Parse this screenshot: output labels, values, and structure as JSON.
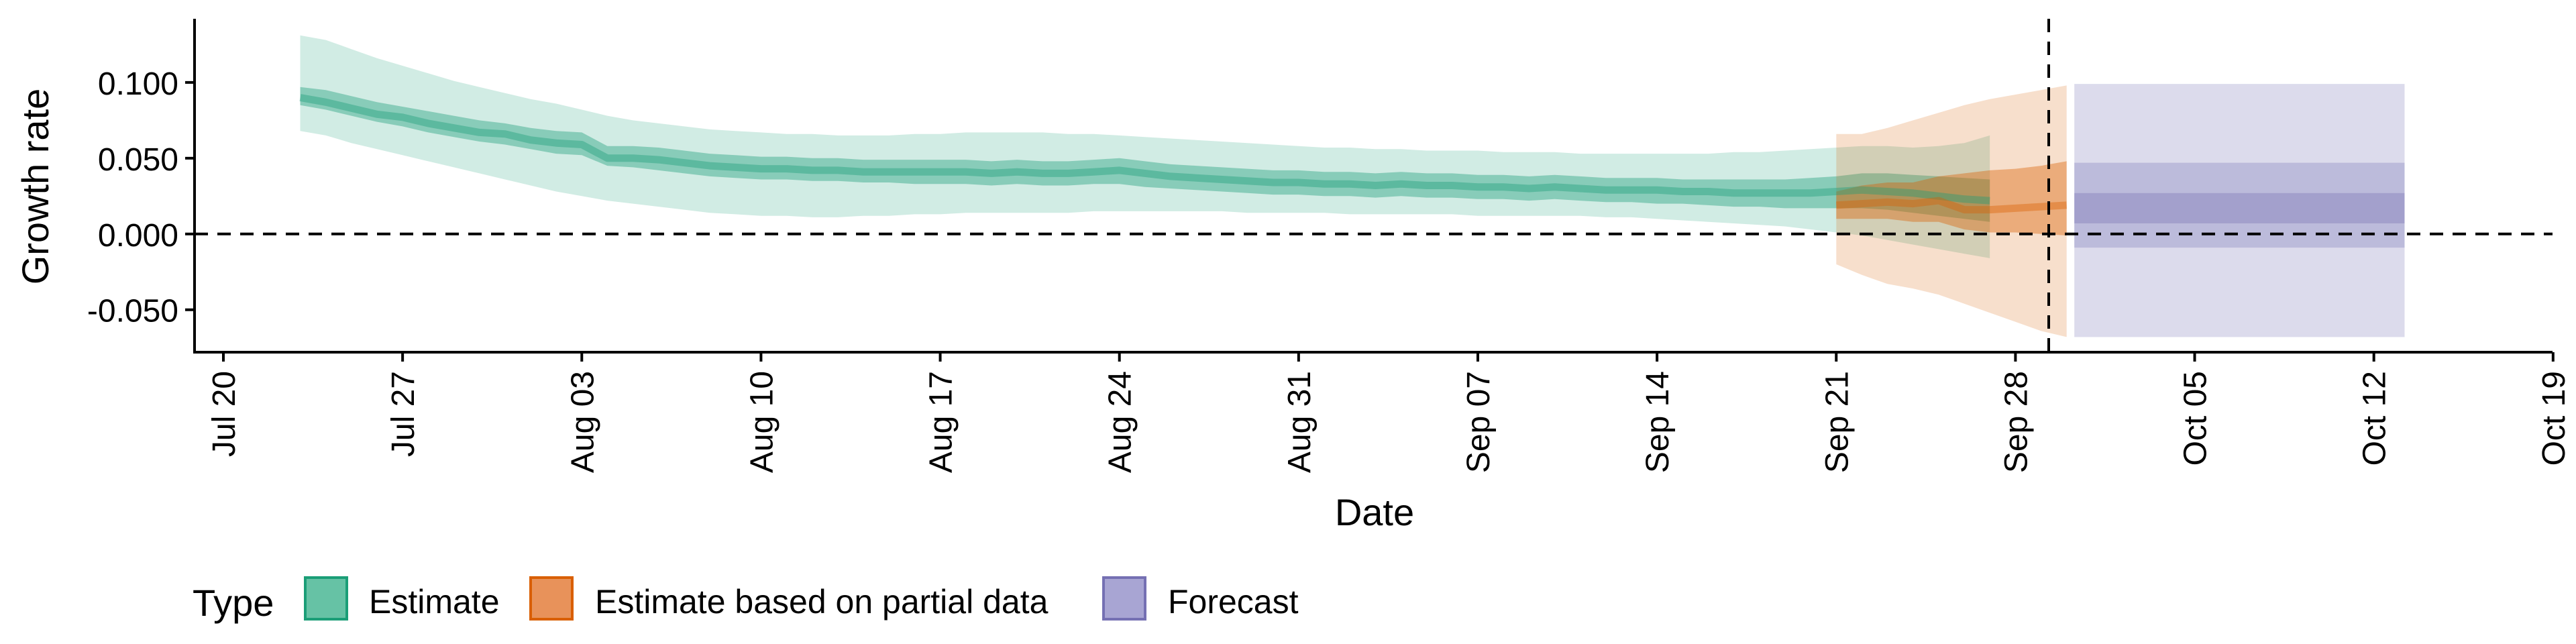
{
  "chart_data": {
    "type": "area",
    "title": "",
    "xlabel": "Date",
    "ylabel": "Growth rate",
    "ylim": [
      -0.078,
      0.142
    ],
    "xlim_days_from_jul20": [
      -1,
      91.3
    ],
    "y_ticks": [
      {
        "value": -0.05,
        "label": "-0.050"
      },
      {
        "value": 0.0,
        "label": "0.000"
      },
      {
        "value": 0.05,
        "label": "0.050"
      },
      {
        "value": 0.1,
        "label": "0.100"
      }
    ],
    "x_ticks": [
      {
        "day": 0,
        "label": "Jul 20"
      },
      {
        "day": 7,
        "label": "Jul 27"
      },
      {
        "day": 14,
        "label": "Aug 03"
      },
      {
        "day": 21,
        "label": "Aug 10"
      },
      {
        "day": 28,
        "label": "Aug 17"
      },
      {
        "day": 35,
        "label": "Aug 24"
      },
      {
        "day": 42,
        "label": "Aug 31"
      },
      {
        "day": 49,
        "label": "Sep 07"
      },
      {
        "day": 56,
        "label": "Sep 14"
      },
      {
        "day": 63,
        "label": "Sep 21"
      },
      {
        "day": 70,
        "label": "Sep 28"
      },
      {
        "day": 77,
        "label": "Oct 05"
      },
      {
        "day": 84,
        "label": "Oct 12"
      },
      {
        "day": 91,
        "label": "Oct 19"
      }
    ],
    "reference_lines": {
      "horizontal_y": 0.0,
      "vertical_day": 71.3
    },
    "legend": {
      "position": "bottom-left",
      "title": "Type",
      "entries": [
        {
          "label": "Estimate",
          "fill": "#66c2a5",
          "border": "#1b9e77"
        },
        {
          "label": "Estimate based on partial data",
          "fill": "#e8925a",
          "border": "#d95f02"
        },
        {
          "label": "Forecast",
          "fill": "#a8a5d3",
          "border": "#7570b3"
        }
      ]
    },
    "series": [
      {
        "name": "Estimate",
        "color": "#1b9e77",
        "x_start_day": 3,
        "x_step_days": 1,
        "median": [
          0.09,
          0.087,
          0.083,
          0.079,
          0.077,
          0.073,
          0.07,
          0.067,
          0.066,
          0.062,
          0.06,
          0.059,
          0.05,
          0.05,
          0.049,
          0.047,
          0.045,
          0.044,
          0.043,
          0.043,
          0.042,
          0.042,
          0.041,
          0.041,
          0.041,
          0.041,
          0.041,
          0.04,
          0.041,
          0.04,
          0.04,
          0.041,
          0.042,
          0.04,
          0.038,
          0.037,
          0.036,
          0.035,
          0.034,
          0.034,
          0.033,
          0.033,
          0.032,
          0.033,
          0.032,
          0.032,
          0.031,
          0.031,
          0.03,
          0.031,
          0.03,
          0.029,
          0.029,
          0.029,
          0.028,
          0.028,
          0.027,
          0.027,
          0.027,
          0.027,
          0.028,
          0.029,
          0.028,
          0.027,
          0.025,
          0.023,
          0.022
        ],
        "inner_low": [
          0.085,
          0.082,
          0.078,
          0.074,
          0.071,
          0.067,
          0.064,
          0.061,
          0.059,
          0.056,
          0.053,
          0.052,
          0.045,
          0.044,
          0.042,
          0.04,
          0.038,
          0.037,
          0.036,
          0.036,
          0.035,
          0.035,
          0.034,
          0.034,
          0.033,
          0.033,
          0.033,
          0.032,
          0.033,
          0.032,
          0.032,
          0.033,
          0.033,
          0.031,
          0.03,
          0.029,
          0.028,
          0.027,
          0.026,
          0.026,
          0.025,
          0.025,
          0.024,
          0.025,
          0.024,
          0.024,
          0.023,
          0.023,
          0.022,
          0.023,
          0.022,
          0.021,
          0.021,
          0.02,
          0.02,
          0.019,
          0.018,
          0.018,
          0.017,
          0.017,
          0.017,
          0.017,
          0.016,
          0.014,
          0.012,
          0.01,
          0.008
        ],
        "inner_high": [
          0.097,
          0.095,
          0.091,
          0.087,
          0.084,
          0.081,
          0.078,
          0.075,
          0.073,
          0.07,
          0.068,
          0.067,
          0.058,
          0.058,
          0.057,
          0.055,
          0.053,
          0.052,
          0.051,
          0.051,
          0.05,
          0.05,
          0.049,
          0.049,
          0.049,
          0.049,
          0.049,
          0.048,
          0.049,
          0.048,
          0.048,
          0.049,
          0.05,
          0.048,
          0.046,
          0.045,
          0.044,
          0.043,
          0.042,
          0.042,
          0.041,
          0.041,
          0.04,
          0.041,
          0.04,
          0.04,
          0.039,
          0.039,
          0.038,
          0.039,
          0.038,
          0.037,
          0.037,
          0.037,
          0.036,
          0.036,
          0.036,
          0.036,
          0.036,
          0.037,
          0.038,
          0.04,
          0.04,
          0.039,
          0.038,
          0.037,
          0.036
        ],
        "outer_low": [
          0.068,
          0.065,
          0.06,
          0.056,
          0.052,
          0.048,
          0.044,
          0.04,
          0.036,
          0.032,
          0.028,
          0.025,
          0.022,
          0.02,
          0.018,
          0.016,
          0.014,
          0.013,
          0.012,
          0.012,
          0.011,
          0.011,
          0.012,
          0.012,
          0.013,
          0.013,
          0.014,
          0.014,
          0.014,
          0.014,
          0.014,
          0.015,
          0.015,
          0.015,
          0.015,
          0.015,
          0.015,
          0.014,
          0.014,
          0.014,
          0.014,
          0.013,
          0.013,
          0.013,
          0.013,
          0.013,
          0.012,
          0.012,
          0.012,
          0.012,
          0.012,
          0.011,
          0.011,
          0.01,
          0.009,
          0.008,
          0.007,
          0.006,
          0.005,
          0.003,
          0.001,
          -0.001,
          -0.004,
          -0.007,
          -0.01,
          -0.013,
          -0.016
        ],
        "outer_high": [
          0.131,
          0.128,
          0.122,
          0.116,
          0.111,
          0.106,
          0.101,
          0.097,
          0.093,
          0.089,
          0.086,
          0.082,
          0.078,
          0.075,
          0.073,
          0.071,
          0.069,
          0.068,
          0.067,
          0.066,
          0.066,
          0.065,
          0.065,
          0.065,
          0.066,
          0.066,
          0.067,
          0.067,
          0.067,
          0.067,
          0.066,
          0.066,
          0.065,
          0.064,
          0.063,
          0.062,
          0.061,
          0.06,
          0.059,
          0.058,
          0.057,
          0.057,
          0.056,
          0.056,
          0.055,
          0.055,
          0.055,
          0.054,
          0.054,
          0.054,
          0.053,
          0.053,
          0.053,
          0.053,
          0.053,
          0.053,
          0.054,
          0.054,
          0.055,
          0.056,
          0.057,
          0.058,
          0.058,
          0.057,
          0.058,
          0.06,
          0.065
        ]
      },
      {
        "name": "Estimate based on partial data",
        "color": "#d95f02",
        "x_start_day": 63,
        "x_step_days": 1,
        "median": [
          0.019,
          0.02,
          0.021,
          0.02,
          0.022,
          0.016,
          0.016,
          0.017,
          0.018,
          0.019
        ],
        "inner_low": [
          0.01,
          0.01,
          0.01,
          0.008,
          0.008,
          0.003,
          0.001,
          0.001,
          0.0,
          -0.001
        ],
        "inner_high": [
          0.028,
          0.032,
          0.034,
          0.034,
          0.038,
          0.04,
          0.042,
          0.043,
          0.045,
          0.048
        ],
        "outer_low": [
          -0.02,
          -0.027,
          -0.033,
          -0.036,
          -0.04,
          -0.046,
          -0.052,
          -0.058,
          -0.064,
          -0.068
        ],
        "outer_high": [
          0.066,
          0.066,
          0.07,
          0.075,
          0.08,
          0.085,
          0.089,
          0.092,
          0.095,
          0.098
        ]
      },
      {
        "name": "Forecast",
        "color": "#7570b3",
        "x_start_day": 72.3,
        "x_end_day": 85.2,
        "median": 0.015,
        "center_low": 0.007,
        "center_high": 0.027,
        "inner_low": -0.009,
        "inner_high": 0.047,
        "outer_low": -0.068,
        "outer_high": 0.099
      }
    ]
  }
}
